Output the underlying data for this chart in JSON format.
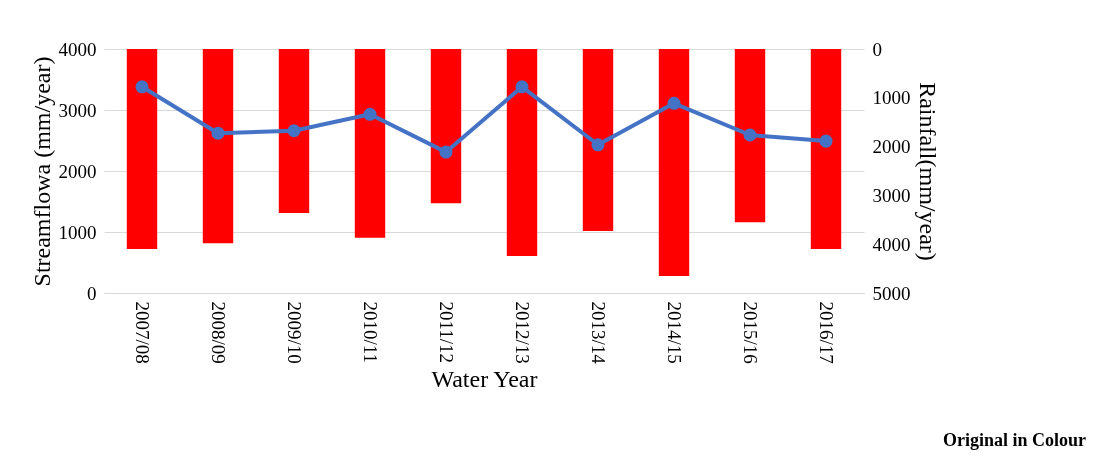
{
  "chart_data": {
    "type": "bar",
    "xlabel": "Water Year",
    "ylabel": "Streamflowa (mm/year)",
    "y2label": "Rainfall(mm/year)",
    "categories": [
      "2007/08",
      "2008/09",
      "2009/10",
      "2010/11",
      "2011/12",
      "2012/13",
      "2013/14",
      "2014/15",
      "2015/16",
      "2016/17"
    ],
    "series": [
      {
        "axis": "y2",
        "color": "#ff0000",
        "values": [
          4100,
          3980,
          3360,
          3870,
          3160,
          4240,
          3730,
          4650,
          3550,
          4100
        ]
      },
      {
        "type": "line",
        "axis": "y",
        "color": "#4472c4",
        "marker": "circle",
        "values": [
          3380,
          2620,
          2660,
          2930,
          2310,
          3380,
          2430,
          3110,
          2590,
          2490
        ]
      }
    ],
    "ylim": [
      0,
      4000
    ],
    "yticks": [
      0,
      1000,
      2000,
      3000,
      4000
    ],
    "y2lim": [
      5000,
      0
    ],
    "y2ticks": [
      0,
      1000,
      2000,
      3000,
      4000,
      5000
    ],
    "grid": "y",
    "annotations": [
      "Original in Colour"
    ]
  }
}
